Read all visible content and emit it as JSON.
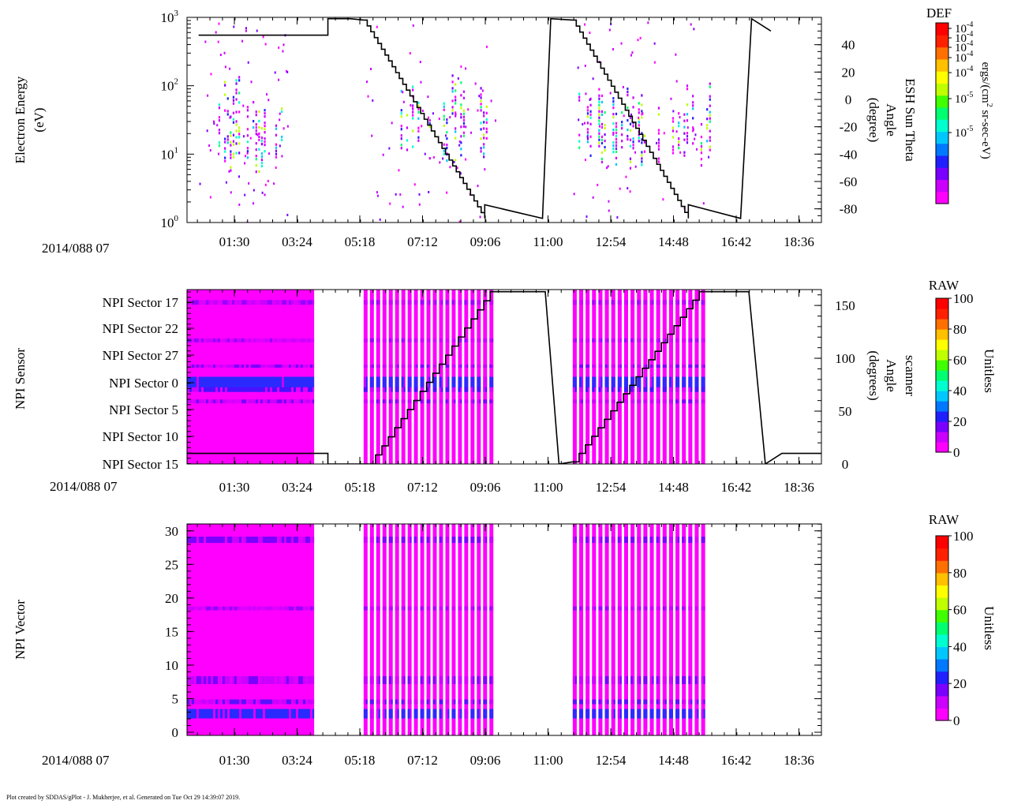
{
  "footer": "Plot created by SDDAS/gPlot - J. Mukherjee, et al.  Generated on Tue Oct 29 14:39:07 2019.",
  "colormap": [
    "#ff00ff",
    "#cc00ff",
    "#7a00ff",
    "#2020ff",
    "#0078ff",
    "#00c8ff",
    "#00ffd0",
    "#00ff70",
    "#40ff00",
    "#c0ff00",
    "#ffff00",
    "#ffc000",
    "#ff7000",
    "#ff2000",
    "#ff0000"
  ],
  "chart_data": [
    {
      "type": "heatmap",
      "ylabel_line1": "Electron Energy",
      "ylabel_line2": "(eV)",
      "yscale": "log",
      "ylim": [
        1,
        1000
      ],
      "y_ticks": [
        {
          "pre": "10",
          "exp": "0"
        },
        {
          "pre": "10",
          "exp": "1"
        },
        {
          "pre": "10",
          "exp": "2"
        },
        {
          "pre": "10",
          "exp": "3"
        }
      ],
      "date_label": "2014/088 07",
      "x_tick_labels": [
        "01:30",
        "03:24",
        "05:18",
        "07:12",
        "09:06",
        "11:00",
        "12:54",
        "14:48",
        "16:42",
        "18:36"
      ],
      "data_intervals": [
        [
          "00:25",
          "03:07"
        ],
        [
          "05:25",
          "09:25"
        ],
        [
          "11:45",
          "15:53"
        ]
      ],
      "energy_range_ev": [
        5,
        150
      ],
      "right_axis": {
        "label_line1": "ESH Sun Theta",
        "label_line2": "Angle",
        "label_line3": "(degree)",
        "ylim": [
          -90,
          60
        ],
        "ticks": [
          40,
          20,
          0,
          -20,
          -40,
          -60,
          -80
        ]
      },
      "overlay_series": {
        "name": "ESH Sun Theta Angle",
        "x": [
          "00:25",
          "04:20",
          "04:20",
          "05:00",
          "05:25",
          "09:05",
          "09:05",
          "10:50",
          "11:05",
          "11:45",
          "15:15",
          "15:15",
          "16:50",
          "17:10",
          "17:45"
        ],
        "y": [
          47,
          47,
          59,
          59,
          58,
          -87,
          -77,
          -87,
          59,
          58,
          -87,
          -77,
          -87,
          59,
          50
        ],
        "step": 4.5
      },
      "colorbar": {
        "title": "DEF",
        "unit_text": "ergs/(cm",
        "unit_sup": "2",
        "unit_tail": " sr-sec-eV)",
        "ticks": [
          {
            "pre": "10",
            "exp": "-4"
          },
          {
            "pre": "10",
            "exp": "-4"
          },
          {
            "pre": "10",
            "exp": "-4"
          },
          {
            "pre": "10",
            "exp": "-4"
          },
          {
            "pre": "10",
            "exp": "-4"
          },
          {
            "pre": "10",
            "exp": "-5"
          },
          {
            "pre": "10",
            "exp": "-5"
          }
        ]
      }
    },
    {
      "type": "heatmap",
      "ylabel": "NPI Sensor",
      "y_categories": [
        "NPI Sector 17",
        "NPI Sector 22",
        "NPI Sector 27",
        "NPI Sector 0",
        "NPI Sector 5",
        "NPI Sector 10",
        "NPI Sector 15"
      ],
      "date_label": "2014/088 07",
      "x_tick_labels": [
        "01:30",
        "03:24",
        "05:18",
        "07:12",
        "09:06",
        "11:00",
        "12:54",
        "14:48",
        "16:42",
        "18:36"
      ],
      "blocks": [
        {
          "x0": "00:00",
          "x1": "03:55",
          "bars": 0
        },
        {
          "x0": "05:25",
          "x1": "09:25",
          "bars": 21
        },
        {
          "x0": "11:45",
          "x1": "15:50",
          "bars": 21
        }
      ],
      "right_axis": {
        "label_line1": "scanner",
        "label_line2": "Angle",
        "label_line3": "(degrees)",
        "ylim": [
          0,
          165
        ],
        "ticks": [
          150,
          100,
          50,
          0
        ]
      },
      "overlay_series": {
        "name": "scanner Angle",
        "x": [
          "00:00",
          "04:20",
          "04:20",
          "05:25",
          "05:35",
          "09:15",
          "10:55",
          "11:20",
          "11:45",
          "15:35",
          "17:05",
          "17:35",
          "18:05",
          "20:00"
        ],
        "y": [
          10,
          10,
          0,
          0,
          0,
          163,
          163,
          0,
          2,
          163,
          163,
          0,
          10,
          10
        ],
        "step": 8
      },
      "colorbar": {
        "title": "RAW",
        "unit": "Unitless",
        "ticks": [
          100,
          80,
          60,
          40,
          20,
          0
        ]
      }
    },
    {
      "type": "heatmap",
      "ylabel": "NPI Vector",
      "ylim": [
        0,
        31.5
      ],
      "y_ticks": [
        0,
        5,
        10,
        15,
        20,
        25,
        30
      ],
      "date_label": "2014/088 07",
      "x_tick_labels": [
        "01:30",
        "03:24",
        "05:18",
        "07:12",
        "09:06",
        "11:00",
        "12:54",
        "14:48",
        "16:42",
        "18:36"
      ],
      "blocks": [
        {
          "x0": "00:00",
          "x1": "03:55",
          "bars": 0
        },
        {
          "x0": "05:25",
          "x1": "09:25",
          "bars": 21
        },
        {
          "x0": "11:45",
          "x1": "15:50",
          "bars": 21
        }
      ],
      "colorbar": {
        "title": "RAW",
        "unit": "Unitless",
        "ticks": [
          100,
          80,
          60,
          40,
          20,
          0
        ]
      }
    }
  ]
}
